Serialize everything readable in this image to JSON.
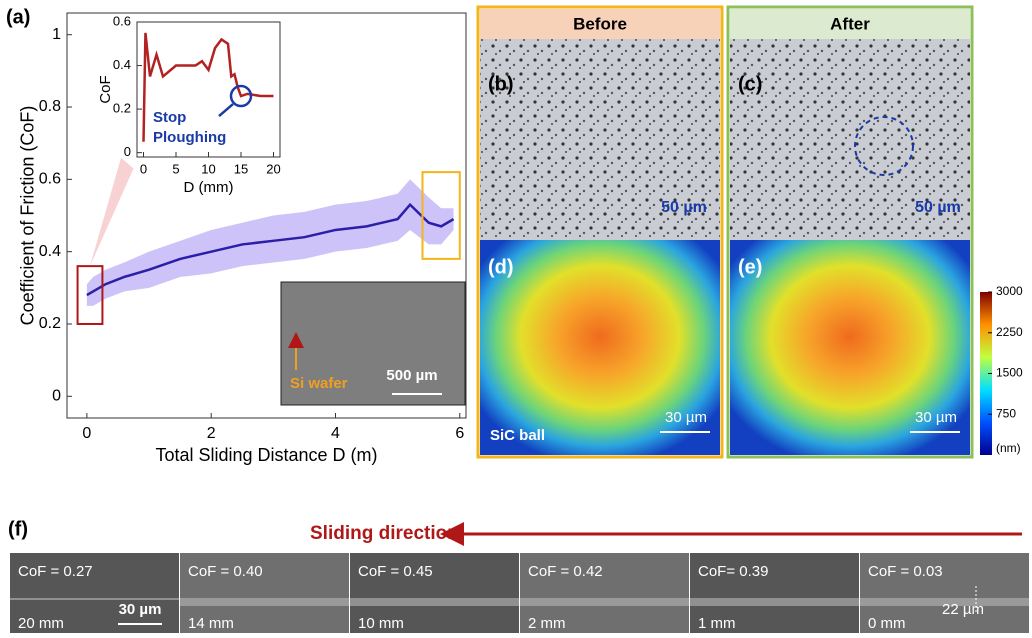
{
  "chart_data": [
    {
      "type": "line",
      "panel": "(a)",
      "x_label": "Total Sliding Distance D (m)",
      "y_label": "Coefficient of Friction (CoF)",
      "x": [
        0,
        0.1,
        0.3,
        0.6,
        1,
        1.5,
        2,
        2.5,
        3,
        3.5,
        4,
        4.5,
        5,
        5.2,
        5.5,
        5.7,
        5.9
      ],
      "series": [
        {
          "color": "#2a1fa8",
          "band_color": "#b9a9f5",
          "values": [
            0.28,
            0.29,
            0.31,
            0.33,
            0.35,
            0.38,
            0.4,
            0.42,
            0.43,
            0.44,
            0.46,
            0.47,
            0.49,
            0.53,
            0.48,
            0.47,
            0.49
          ],
          "upper": [
            0.31,
            0.33,
            0.35,
            0.37,
            0.4,
            0.43,
            0.46,
            0.48,
            0.5,
            0.51,
            0.53,
            0.54,
            0.56,
            0.6,
            0.55,
            0.52,
            0.52
          ],
          "lower": [
            0.25,
            0.25,
            0.27,
            0.29,
            0.3,
            0.33,
            0.34,
            0.36,
            0.37,
            0.38,
            0.4,
            0.41,
            0.43,
            0.46,
            0.42,
            0.42,
            0.46
          ]
        }
      ],
      "xlim": [
        -0.32,
        6.1
      ],
      "ylim": [
        -0.06,
        1.06
      ],
      "xticks": [
        0,
        2,
        4,
        6
      ],
      "yticks": [
        0,
        0.2,
        0.4,
        0.6,
        0.8,
        1
      ]
    },
    {
      "type": "line",
      "x_label": "D (mm)",
      "y_label": "CoF",
      "annotation": [
        "Stop",
        "Ploughing"
      ],
      "x": [
        0,
        0.3,
        1,
        2,
        3,
        5,
        8,
        9,
        10,
        11,
        12,
        13,
        13.5,
        14,
        14.5,
        15,
        16,
        18,
        20
      ],
      "series": [
        {
          "color": "#b22222",
          "values": [
            0.05,
            0.55,
            0.35,
            0.45,
            0.35,
            0.4,
            0.4,
            0.42,
            0.38,
            0.48,
            0.52,
            0.5,
            0.35,
            0.36,
            0.3,
            0.26,
            0.27,
            0.26,
            0.26
          ]
        }
      ],
      "xlim": [
        -1,
        21
      ],
      "ylim": [
        -0.02,
        0.6
      ],
      "xticks": [
        0,
        5,
        10,
        15,
        20
      ],
      "yticks": [
        0,
        0.2,
        0.4,
        0.6
      ]
    },
    {
      "type": "colorbar",
      "unit": "(nm)",
      "ylim": [
        0,
        3000
      ],
      "yticks": [
        750,
        1500,
        2250,
        3000
      ]
    }
  ],
  "panels": {
    "inset_wafer": [
      "Si wafer",
      "500 µm"
    ],
    "before": "Before",
    "after": "After",
    "labels": [
      "(b)",
      "(c)",
      "(d)",
      "(e)",
      "(f)"
    ],
    "scale_b": "50 µm",
    "scale_c": "50 µm",
    "scale_d": "30 µm",
    "scale_e": "30 µm",
    "ball": "SiC ball",
    "direction": "Sliding direction",
    "strips": [
      {
        "cof": "CoF = 0.27",
        "d": "20 mm"
      },
      {
        "cof": "CoF = 0.40",
        "d": "14 mm"
      },
      {
        "cof": "CoF = 0.45",
        "d": "10 mm"
      },
      {
        "cof": "CoF = 0.42",
        "d": "2 mm"
      },
      {
        "cof": "CoF= 0.39",
        "d": "1 mm"
      },
      {
        "cof": "CoF = 0.03",
        "d": "0 mm"
      }
    ],
    "scale_f": "30 µm",
    "width_f": "22 µm"
  }
}
